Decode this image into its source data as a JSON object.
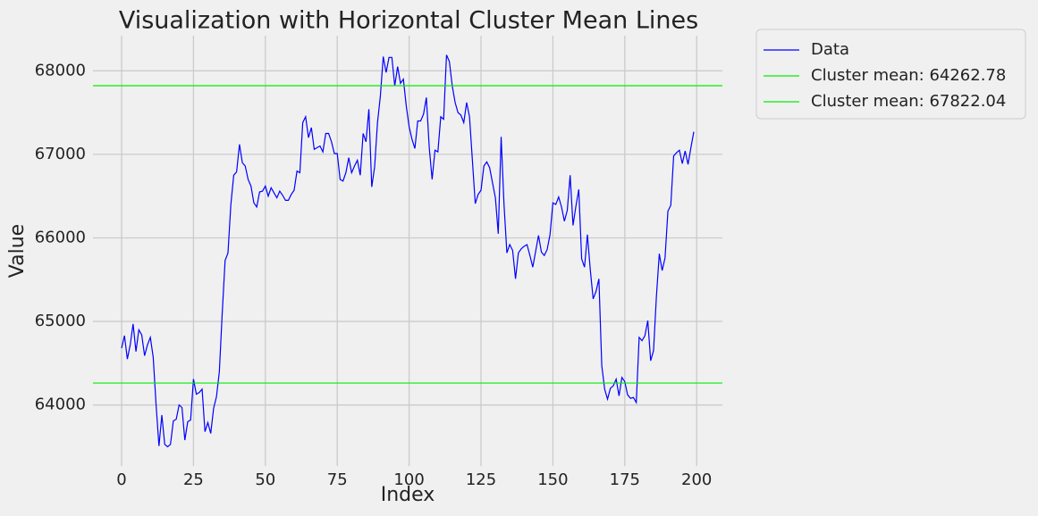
{
  "chart_data": {
    "type": "line",
    "title": "Visualization with Horizontal Cluster Mean Lines",
    "x_label": "Index",
    "y_label": "Value",
    "x": [
      0,
      1,
      2,
      3,
      4,
      5,
      6,
      7,
      8,
      9,
      10,
      11,
      12,
      13,
      14,
      15,
      16,
      17,
      18,
      19,
      20,
      21,
      22,
      23,
      24,
      25,
      26,
      27,
      28,
      29,
      30,
      31,
      32,
      33,
      34,
      35,
      36,
      37,
      38,
      39,
      40,
      41,
      42,
      43,
      44,
      45,
      46,
      47,
      48,
      49,
      50,
      51,
      52,
      53,
      54,
      55,
      56,
      57,
      58,
      59,
      60,
      61,
      62,
      63,
      64,
      65,
      66,
      67,
      68,
      69,
      70,
      71,
      72,
      73,
      74,
      75,
      76,
      77,
      78,
      79,
      80,
      81,
      82,
      83,
      84,
      85,
      86,
      87,
      88,
      89,
      90,
      91,
      92,
      93,
      94,
      95,
      96,
      97,
      98,
      99,
      100,
      101,
      102,
      103,
      104,
      105,
      106,
      107,
      108,
      109,
      110,
      111,
      112,
      113,
      114,
      115,
      116,
      117,
      118,
      119,
      120,
      121,
      122,
      123,
      124,
      125,
      126,
      127,
      128,
      129,
      130,
      131,
      132,
      133,
      134,
      135,
      136,
      137,
      138,
      139,
      140,
      141,
      142,
      143,
      144,
      145,
      146,
      147,
      148,
      149,
      150,
      151,
      152,
      153,
      154,
      155,
      156,
      157,
      158,
      159,
      160,
      161,
      162,
      163,
      164,
      165,
      166,
      167,
      168,
      169,
      170,
      171,
      172,
      173,
      174,
      175,
      176,
      177,
      178,
      179,
      180,
      181,
      182,
      183,
      184,
      185,
      186,
      187,
      188,
      189,
      190,
      191,
      192,
      193,
      194,
      195,
      196,
      197,
      198,
      199
    ],
    "series": [
      {
        "name": "Data",
        "color": "#0000ff",
        "values": [
          64680,
          64830,
          64550,
          64720,
          64970,
          64640,
          64900,
          64840,
          64590,
          64720,
          64810,
          64570,
          64000,
          63510,
          63880,
          63530,
          63500,
          63530,
          63810,
          63830,
          64000,
          63970,
          63580,
          63800,
          63820,
          64310,
          64130,
          64150,
          64190,
          63680,
          63790,
          63660,
          63960,
          64100,
          64400,
          65100,
          65730,
          65820,
          66400,
          66750,
          66790,
          67120,
          66900,
          66860,
          66700,
          66620,
          66420,
          66370,
          66550,
          66560,
          66620,
          66500,
          66600,
          66540,
          66480,
          66560,
          66510,
          66450,
          66450,
          66520,
          66570,
          66800,
          66780,
          67380,
          67450,
          67200,
          67320,
          67060,
          67080,
          67100,
          67030,
          67250,
          67250,
          67150,
          67010,
          67010,
          66700,
          66680,
          66780,
          66960,
          66780,
          66860,
          66930,
          66750,
          67250,
          67150,
          67540,
          66610,
          66850,
          67380,
          67700,
          68170,
          67980,
          68160,
          68160,
          67820,
          68050,
          67850,
          67900,
          67580,
          67330,
          67180,
          67070,
          67400,
          67400,
          67480,
          67680,
          67080,
          66700,
          67050,
          67030,
          67450,
          67420,
          68190,
          68110,
          67820,
          67620,
          67500,
          67470,
          67380,
          67620,
          67450,
          66930,
          66410,
          66520,
          66570,
          66860,
          66910,
          66840,
          66660,
          66480,
          66050,
          67210,
          66400,
          65820,
          65920,
          65850,
          65510,
          65820,
          65870,
          65900,
          65920,
          65790,
          65650,
          65840,
          66030,
          65830,
          65790,
          65860,
          66040,
          66420,
          66400,
          66490,
          66370,
          66200,
          66330,
          66750,
          66150,
          66380,
          66580,
          65750,
          65650,
          66040,
          65620,
          65270,
          65360,
          65510,
          64470,
          64190,
          64070,
          64200,
          64230,
          64310,
          64110,
          64330,
          64280,
          64120,
          64080,
          64090,
          64030,
          64810,
          64770,
          64830,
          65010,
          64530,
          64650,
          65300,
          65810,
          65610,
          65760,
          66320,
          66390,
          66980,
          67020,
          67050,
          66890,
          67040,
          66880,
          67080,
          67270
        ]
      }
    ],
    "hlines": [
      {
        "name": "Cluster mean: 64262.78",
        "value": 64262.78,
        "color": "#00ee00"
      },
      {
        "name": "Cluster mean: 67822.04",
        "value": 67822.04,
        "color": "#00ee00"
      }
    ],
    "xlim": [
      -9.95,
      208.95
    ],
    "ylim": [
      63270,
      68420
    ],
    "xticks": [
      0,
      25,
      50,
      75,
      100,
      125,
      150,
      175,
      200
    ],
    "yticks": [
      64000,
      65000,
      66000,
      67000,
      68000
    ],
    "grid": true,
    "legend": "outside upper right"
  }
}
